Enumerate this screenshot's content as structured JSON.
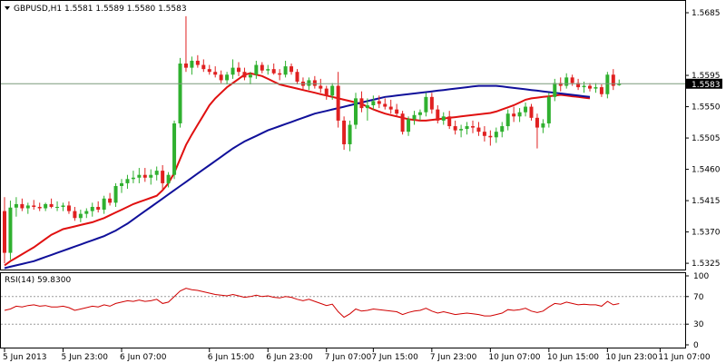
{
  "header": {
    "symbol_text": "GBPUSD,H1  1.5581 1.5589 1.5580 1.5583",
    "collapse_arrow": "triangle-down"
  },
  "rsi_panel": {
    "label": "RSI(14) 59.8300",
    "levels": [
      "100",
      "70",
      "30",
      "0"
    ]
  },
  "colors": {
    "bull": "#2fb02f",
    "bear": "#e02020",
    "ma_fast": "#e01010",
    "ma_slow": "#10109a",
    "rsi": "#d00000",
    "price_line": "#7a9a7a",
    "grid": "#9a9a9a"
  },
  "chart_data": {
    "type": "candlestick",
    "price_axis": {
      "ticks": [
        "1.5685",
        "1.5595",
        "1.5550",
        "1.5505",
        "1.5460",
        "1.5415",
        "1.5370",
        "1.5325"
      ],
      "range": [
        1.5316,
        1.5702
      ]
    },
    "current_price_label": "1.5583",
    "current_price": 1.5583,
    "time_axis": {
      "labels": [
        "5 Jun 2013",
        "5 Jun 23:00",
        "6 Jun 07:00",
        "6 Jun 15:00",
        "6 Jun 23:00",
        "7 Jun 07:00",
        "7 Jun 15:00",
        "7 Jun 23:00",
        "10 Jun 07:00",
        "10 Jun 15:00",
        "10 Jun 23:00",
        "11 Jun 07:00"
      ],
      "label_bars": [
        0,
        10,
        20,
        35,
        45,
        55,
        63,
        73,
        83,
        93,
        103,
        112
      ]
    },
    "candles": [
      [
        1.54,
        1.542,
        1.5325,
        1.534
      ],
      [
        1.534,
        1.5415,
        1.533,
        1.5405
      ],
      [
        1.5405,
        1.542,
        1.5392,
        1.541
      ],
      [
        1.541,
        1.5418,
        1.54,
        1.5404
      ],
      [
        1.5404,
        1.5412,
        1.5396,
        1.5408
      ],
      [
        1.5408,
        1.5416,
        1.5402,
        1.5406
      ],
      [
        1.5406,
        1.5412,
        1.54,
        1.5404
      ],
      [
        1.5404,
        1.5412,
        1.54,
        1.541
      ],
      [
        1.541,
        1.5418,
        1.5404,
        1.5406
      ],
      [
        1.5406,
        1.5414,
        1.54,
        1.5406
      ],
      [
        1.5406,
        1.5412,
        1.54,
        1.5408
      ],
      [
        1.5408,
        1.5414,
        1.5396,
        1.54
      ],
      [
        1.54,
        1.5406,
        1.5386,
        1.539
      ],
      [
        1.539,
        1.5402,
        1.5384,
        1.5396
      ],
      [
        1.5396,
        1.5404,
        1.539,
        1.54
      ],
      [
        1.54,
        1.5412,
        1.5392,
        1.5406
      ],
      [
        1.5406,
        1.5414,
        1.5398,
        1.5402
      ],
      [
        1.5402,
        1.5422,
        1.5396,
        1.5418
      ],
      [
        1.5418,
        1.5426,
        1.5408,
        1.5412
      ],
      [
        1.5412,
        1.544,
        1.5406,
        1.5436
      ],
      [
        1.5436,
        1.5446,
        1.5426,
        1.544
      ],
      [
        1.544,
        1.5452,
        1.5432,
        1.5446
      ],
      [
        1.5446,
        1.5458,
        1.544,
        1.5448
      ],
      [
        1.5448,
        1.5462,
        1.544,
        1.5452
      ],
      [
        1.5452,
        1.5462,
        1.5442,
        1.5448
      ],
      [
        1.5448,
        1.546,
        1.5438,
        1.5452
      ],
      [
        1.5452,
        1.5464,
        1.5444,
        1.5458
      ],
      [
        1.5458,
        1.5466,
        1.543,
        1.544
      ],
      [
        1.544,
        1.5456,
        1.5434,
        1.5452
      ],
      [
        1.5452,
        1.553,
        1.5446,
        1.5526
      ],
      [
        1.5526,
        1.562,
        1.552,
        1.5612
      ],
      [
        1.5612,
        1.568,
        1.56,
        1.5606
      ],
      [
        1.5606,
        1.5622,
        1.5596,
        1.5616
      ],
      [
        1.5616,
        1.5624,
        1.5606,
        1.561
      ],
      [
        1.561,
        1.5618,
        1.56,
        1.5604
      ],
      [
        1.5604,
        1.561,
        1.5596,
        1.56
      ],
      [
        1.56,
        1.5608,
        1.5592,
        1.5596
      ],
      [
        1.5596,
        1.5602,
        1.5584,
        1.5588
      ],
      [
        1.5588,
        1.56,
        1.5582,
        1.5596
      ],
      [
        1.5596,
        1.5618,
        1.559,
        1.5606
      ],
      [
        1.5606,
        1.5614,
        1.5594,
        1.56
      ],
      [
        1.56,
        1.5606,
        1.5588,
        1.5592
      ],
      [
        1.5592,
        1.56,
        1.5582,
        1.5596
      ],
      [
        1.5596,
        1.5616,
        1.559,
        1.561
      ],
      [
        1.561,
        1.5614,
        1.5598,
        1.5602
      ],
      [
        1.5602,
        1.561,
        1.5596,
        1.5604
      ],
      [
        1.5604,
        1.5612,
        1.5596,
        1.5598
      ],
      [
        1.5598,
        1.5604,
        1.5588,
        1.5596
      ],
      [
        1.5596,
        1.5616,
        1.5592,
        1.5608
      ],
      [
        1.5608,
        1.5612,
        1.5596,
        1.56
      ],
      [
        1.56,
        1.5604,
        1.5582,
        1.5586
      ],
      [
        1.5586,
        1.5592,
        1.5574,
        1.558
      ],
      [
        1.558,
        1.5592,
        1.5574,
        1.5588
      ],
      [
        1.5588,
        1.5594,
        1.5576,
        1.558
      ],
      [
        1.558,
        1.559,
        1.557,
        1.5576
      ],
      [
        1.5576,
        1.558,
        1.556,
        1.5566
      ],
      [
        1.5566,
        1.5584,
        1.556,
        1.558
      ],
      [
        1.558,
        1.56,
        1.552,
        1.553
      ],
      [
        1.553,
        1.5536,
        1.5488,
        1.5496
      ],
      [
        1.5496,
        1.553,
        1.5486,
        1.5524
      ],
      [
        1.5524,
        1.557,
        1.5518,
        1.5562
      ],
      [
        1.5562,
        1.5572,
        1.5542,
        1.5548
      ],
      [
        1.5548,
        1.5562,
        1.553,
        1.5552
      ],
      [
        1.5552,
        1.5566,
        1.5546,
        1.5558
      ],
      [
        1.5558,
        1.5566,
        1.5548,
        1.5554
      ],
      [
        1.5554,
        1.5562,
        1.5546,
        1.555
      ],
      [
        1.555,
        1.556,
        1.554,
        1.5546
      ],
      [
        1.5546,
        1.5554,
        1.5536,
        1.554
      ],
      [
        1.554,
        1.5544,
        1.551,
        1.5514
      ],
      [
        1.5514,
        1.5536,
        1.5508,
        1.5532
      ],
      [
        1.5532,
        1.5544,
        1.5524,
        1.5538
      ],
      [
        1.5538,
        1.5546,
        1.553,
        1.5542
      ],
      [
        1.5542,
        1.557,
        1.5536,
        1.5564
      ],
      [
        1.5564,
        1.557,
        1.554,
        1.5546
      ],
      [
        1.5546,
        1.5552,
        1.5526,
        1.553
      ],
      [
        1.553,
        1.5542,
        1.5524,
        1.5536
      ],
      [
        1.5536,
        1.5544,
        1.5518,
        1.5522
      ],
      [
        1.5522,
        1.553,
        1.551,
        1.5516
      ],
      [
        1.5516,
        1.5524,
        1.5506,
        1.5518
      ],
      [
        1.5518,
        1.5528,
        1.551,
        1.5522
      ],
      [
        1.5522,
        1.553,
        1.5512,
        1.552
      ],
      [
        1.552,
        1.5528,
        1.5508,
        1.5514
      ],
      [
        1.5514,
        1.5522,
        1.55,
        1.5508
      ],
      [
        1.5508,
        1.5516,
        1.5494,
        1.5506
      ],
      [
        1.5506,
        1.552,
        1.5498,
        1.5514
      ],
      [
        1.5514,
        1.5528,
        1.5506,
        1.5522
      ],
      [
        1.5522,
        1.5546,
        1.5516,
        1.554
      ],
      [
        1.554,
        1.555,
        1.5528,
        1.5536
      ],
      [
        1.5536,
        1.5548,
        1.5528,
        1.5542
      ],
      [
        1.5542,
        1.5556,
        1.5536,
        1.555
      ],
      [
        1.555,
        1.5554,
        1.553,
        1.5534
      ],
      [
        1.5534,
        1.554,
        1.549,
        1.552
      ],
      [
        1.552,
        1.5532,
        1.5512,
        1.5526
      ],
      [
        1.5526,
        1.557,
        1.552,
        1.5564
      ],
      [
        1.5564,
        1.559,
        1.5558,
        1.5584
      ],
      [
        1.5584,
        1.5592,
        1.5572,
        1.558
      ],
      [
        1.558,
        1.5598,
        1.5576,
        1.5592
      ],
      [
        1.5592,
        1.5596,
        1.558,
        1.5584
      ],
      [
        1.5584,
        1.559,
        1.5574,
        1.5578
      ],
      [
        1.5578,
        1.5586,
        1.557,
        1.558
      ],
      [
        1.558,
        1.5584,
        1.5572,
        1.5576
      ],
      [
        1.5576,
        1.5584,
        1.557,
        1.5578
      ],
      [
        1.5578,
        1.5582,
        1.5564,
        1.5568
      ],
      [
        1.5568,
        1.56,
        1.5562,
        1.5596
      ],
      [
        1.5596,
        1.5604,
        1.5574,
        1.558
      ],
      [
        1.5581,
        1.5589,
        1.558,
        1.5583
      ]
    ],
    "series": [
      {
        "type": "line",
        "values": [
          1.5322,
          1.5328,
          1.5333,
          1.5338,
          1.5343,
          1.5348,
          1.5354,
          1.536,
          1.5366,
          1.537,
          1.5374,
          1.5376,
          1.5378,
          1.538,
          1.5382,
          1.5384,
          1.5387,
          1.539,
          1.5394,
          1.5398,
          1.5402,
          1.5406,
          1.541,
          1.5413,
          1.5416,
          1.5419,
          1.5422,
          1.543,
          1.544,
          1.5455,
          1.5475,
          1.5495,
          1.551,
          1.5524,
          1.5538,
          1.5552,
          1.5562,
          1.557,
          1.5578,
          1.5584,
          1.559,
          1.5596,
          1.5598,
          1.5596,
          1.5594,
          1.559,
          1.5586,
          1.5582,
          1.558,
          1.5578,
          1.5576,
          1.5574,
          1.5572,
          1.557,
          1.5568,
          1.5566,
          1.5564,
          1.5562,
          1.556,
          1.5558,
          1.5556,
          1.5554,
          1.555,
          1.5546,
          1.5543,
          1.554,
          1.5538,
          1.5536,
          1.5534,
          1.5532,
          1.5531,
          1.553,
          1.553,
          1.5531,
          1.5532,
          1.5533,
          1.5534,
          1.5535,
          1.5536,
          1.5537,
          1.5538,
          1.5539,
          1.554,
          1.5541,
          1.5543,
          1.5546,
          1.5549,
          1.5552,
          1.5556,
          1.556,
          1.5562,
          1.5563,
          1.5564,
          1.5565,
          1.5566,
          1.5567,
          1.5566,
          1.5565,
          1.5564,
          1.5563,
          1.5562
        ]
      },
      {
        "type": "line",
        "values": [
          1.5318,
          1.532,
          1.5322,
          1.5324,
          1.5326,
          1.5328,
          1.5331,
          1.5334,
          1.5337,
          1.534,
          1.5343,
          1.5346,
          1.5349,
          1.5352,
          1.5355,
          1.5358,
          1.5361,
          1.5364,
          1.5368,
          1.5372,
          1.5377,
          1.5382,
          1.5388,
          1.5394,
          1.54,
          1.5406,
          1.5412,
          1.5418,
          1.5424,
          1.543,
          1.5436,
          1.5442,
          1.5448,
          1.5454,
          1.546,
          1.5466,
          1.5472,
          1.5478,
          1.5484,
          1.549,
          1.5495,
          1.55,
          1.5504,
          1.5508,
          1.5512,
          1.5516,
          1.5519,
          1.5522,
          1.5525,
          1.5528,
          1.5531,
          1.5534,
          1.5537,
          1.554,
          1.5542,
          1.5544,
          1.5546,
          1.5548,
          1.555,
          1.5552,
          1.5554,
          1.5556,
          1.5558,
          1.556,
          1.5562,
          1.5564,
          1.5565,
          1.5566,
          1.5567,
          1.5568,
          1.5569,
          1.557,
          1.5571,
          1.5572,
          1.5573,
          1.5574,
          1.5575,
          1.5576,
          1.5577,
          1.5578,
          1.5579,
          1.558,
          1.558,
          1.558,
          1.558,
          1.5579,
          1.5578,
          1.5577,
          1.5576,
          1.5575,
          1.5574,
          1.5573,
          1.5572,
          1.5571,
          1.557,
          1.5569,
          1.5568,
          1.5567,
          1.5566,
          1.5565,
          1.5564
        ]
      }
    ],
    "rsi": {
      "range": [
        0,
        100
      ],
      "levels": [
        70,
        30
      ],
      "values": [
        50,
        52,
        56,
        55,
        57,
        58,
        56,
        57,
        55,
        55,
        56,
        54,
        50,
        52,
        54,
        56,
        55,
        58,
        56,
        60,
        62,
        64,
        63,
        65,
        63,
        64,
        66,
        60,
        62,
        70,
        78,
        82,
        80,
        79,
        77,
        75,
        73,
        72,
        71,
        73,
        71,
        69,
        70,
        72,
        70,
        71,
        69,
        68,
        70,
        69,
        66,
        64,
        66,
        63,
        60,
        57,
        59,
        48,
        40,
        45,
        52,
        49,
        50,
        52,
        51,
        50,
        49,
        48,
        44,
        47,
        49,
        50,
        53,
        49,
        46,
        48,
        46,
        44,
        45,
        46,
        45,
        44,
        42,
        42,
        44,
        46,
        51,
        50,
        51,
        53,
        49,
        47,
        49,
        55,
        60,
        59,
        62,
        60,
        58,
        59,
        58,
        58,
        56,
        63,
        58,
        59.83
      ]
    },
    "grid": false
  }
}
